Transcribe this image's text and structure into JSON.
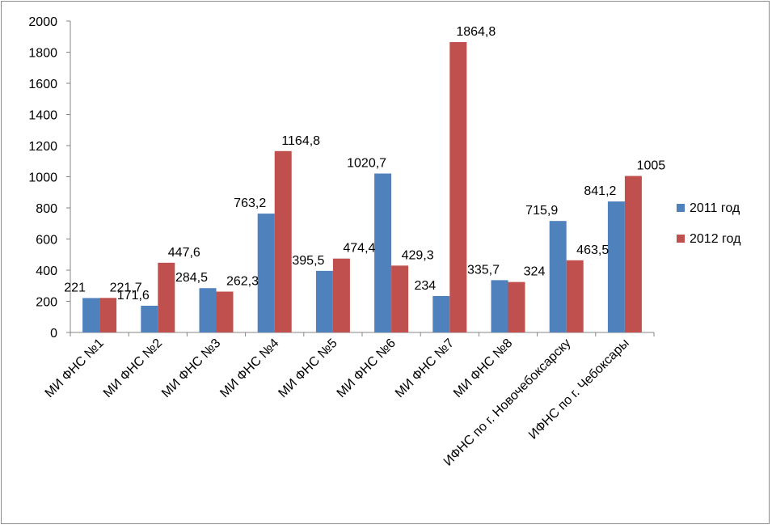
{
  "chart_data": {
    "type": "bar",
    "categories": [
      "МИ ФНС №1",
      "МИ ФНС №2",
      "МИ ФНС №3",
      "МИ ФНС №4",
      "МИ ФНС №5",
      "МИ ФНС №6",
      "МИ ФНС №7",
      "МИ ФНС №8",
      "ИФНС по г. Новочебоксарску",
      "ИФНС по г. Чебоксары"
    ],
    "series": [
      {
        "name": "2011 год",
        "color": "#4f81bd",
        "values": [
          221,
          171.6,
          284.5,
          763.2,
          395.5,
          1020.7,
          234,
          335.7,
          715.9,
          841.2
        ],
        "labels": [
          "221",
          "171,6",
          "284,5",
          "763,2",
          "395,5",
          "1020,7",
          "234",
          "335,7",
          "715,9",
          "841,2"
        ]
      },
      {
        "name": "2012 год",
        "color": "#c0504d",
        "values": [
          221.7,
          447.6,
          262.3,
          1164.8,
          474.4,
          429.3,
          1864.8,
          324,
          463.5,
          1005
        ],
        "labels": [
          "221,7",
          "447,6",
          "262,3",
          "1164,8",
          "474,4",
          "429,3",
          "1864,8",
          "324",
          "463,5",
          "1005"
        ]
      }
    ],
    "ylim": [
      0,
      2000
    ],
    "yticks": [
      "0",
      "200",
      "400",
      "600",
      "800",
      "1000",
      "1200",
      "1400",
      "1600",
      "1800",
      "2000"
    ],
    "grid": false,
    "legend": "right",
    "title": "",
    "xlabel": "",
    "ylabel": ""
  }
}
